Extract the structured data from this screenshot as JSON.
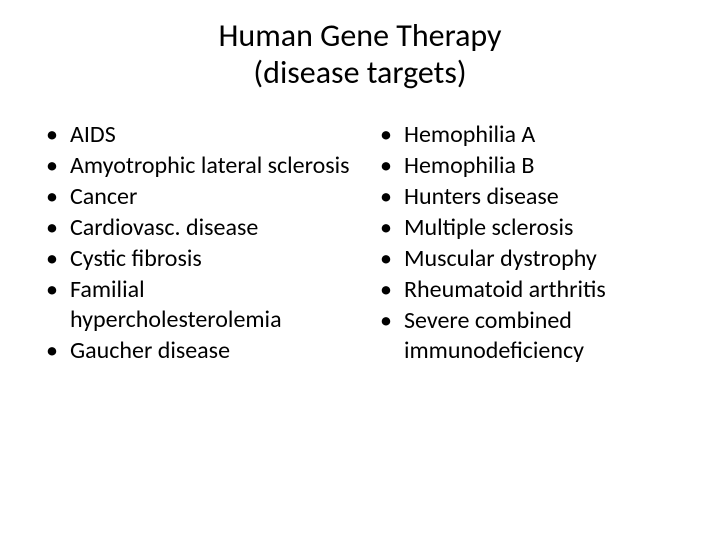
{
  "type": "slide",
  "background_color": "#ffffff",
  "text_color": "#000000",
  "font_family": "Calibri",
  "title": {
    "line1": "Human Gene Therapy",
    "line2": "(disease targets)",
    "fontsize": 32,
    "align": "center"
  },
  "body": {
    "fontsize": 24,
    "bullet_char": "•",
    "columns": [
      {
        "items": [
          "AIDS",
          "Amyotrophic lateral sclerosis",
          "Cancer",
          "Cardiovasc. disease",
          "Cystic fibrosis",
          "Familial hypercholesterolemia",
          "Gaucher disease"
        ]
      },
      {
        "items": [
          "Hemophilia A",
          "Hemophilia B",
          "Hunters disease",
          "Multiple sclerosis",
          "Muscular dystrophy",
          "Rheumatoid arthritis",
          "Severe combined immunodeficiency"
        ]
      }
    ]
  }
}
